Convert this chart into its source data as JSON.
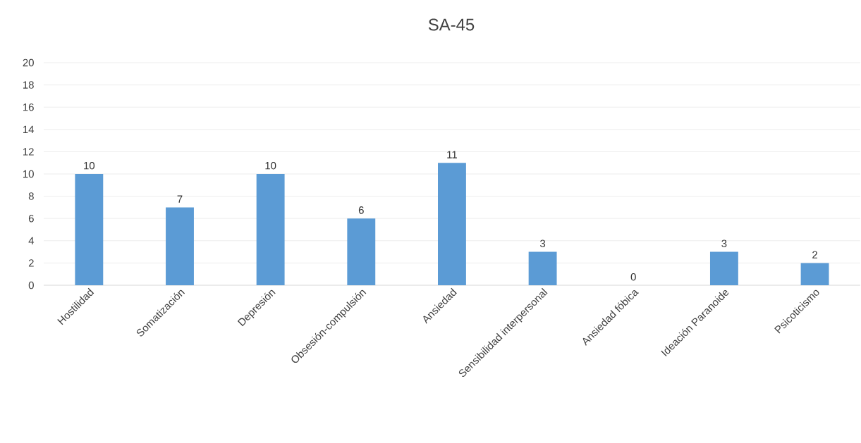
{
  "chart_data": {
    "type": "bar",
    "title": "SA-45",
    "categories": [
      "Hostilidad",
      "Somatización",
      "Depresión",
      "Obsesión-compulsión",
      "Ansiedad",
      "Sensibilidad interpersonal",
      "Ansiedad fóbica",
      "Ideación Paranoide",
      "Psicoticismo"
    ],
    "values": [
      10,
      7,
      10,
      6,
      11,
      3,
      0,
      3,
      2
    ],
    "color": "#5b9bd5",
    "ylim": [
      0,
      20
    ],
    "yticks": [
      0,
      2,
      4,
      6,
      8,
      10,
      12,
      14,
      16,
      18,
      20
    ],
    "grid": "y",
    "data_labels": true
  }
}
